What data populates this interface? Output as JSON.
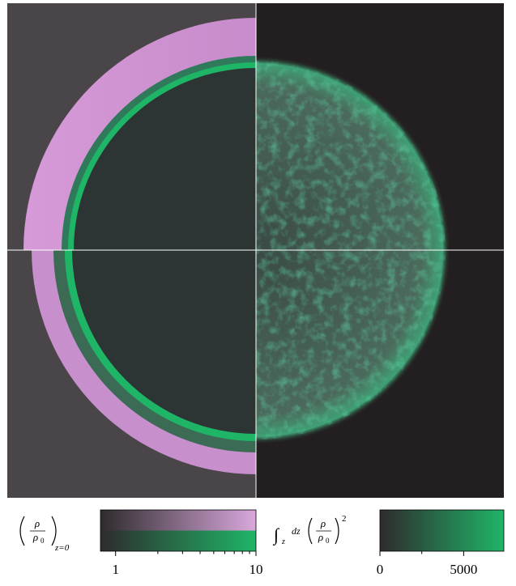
{
  "colorbars": [
    {
      "label": {
        "numerator": "ρ",
        "denominator": "ρ",
        "denominator_subscript": "0",
        "subscript": "z=0"
      },
      "scale": "log",
      "xlim": [
        0.78,
        10
      ],
      "xticks": [
        1,
        10
      ],
      "minor_xticks": [
        2,
        3,
        4,
        5,
        6,
        7,
        8,
        9
      ],
      "colors": [
        [
          "#2e2b2d",
          "#d9a8dc"
        ],
        [
          "#2e2b2d",
          "#1fb567"
        ]
      ]
    },
    {
      "label": {
        "integral": "∫",
        "integral_subscript": "z",
        "differential": "dz",
        "numerator": "ρ",
        "denominator": "ρ",
        "denominator_subscript": "0",
        "exponent": "2"
      },
      "scale": "linear",
      "xlim": [
        0,
        7400
      ],
      "xticks": [
        0,
        5000
      ],
      "minor_xticks": [
        2500
      ],
      "colors": [
        [
          "#2e2b2d",
          "#1fb567"
        ]
      ]
    }
  ]
}
